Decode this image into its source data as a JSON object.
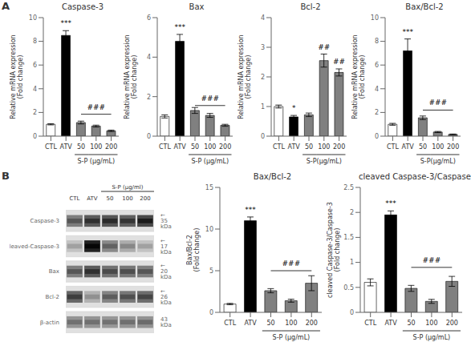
{
  "chart_data": [
    {
      "type": "bar",
      "panel_label": "A",
      "title": "Caspase-3",
      "ylabel": "Relative mRNA expression\n(Fold change)",
      "categories": [
        "CTL",
        "ATV",
        "50",
        "100",
        "200"
      ],
      "values": [
        1.0,
        8.5,
        1.15,
        0.85,
        0.45
      ],
      "errors": [
        0.05,
        0.4,
        0.12,
        0.08,
        0.06
      ],
      "colors": [
        "white",
        "black",
        "#808080",
        "#808080",
        "#808080"
      ],
      "ylim": [
        0,
        10
      ],
      "yticks": [
        0,
        2,
        4,
        6,
        8,
        10
      ],
      "grid": false,
      "x_bracket": {
        "label": "S-P (μg/mL)",
        "from": "50",
        "to": "200"
      },
      "annotations": [
        {
          "text": "***",
          "category": "ATV"
        },
        {
          "text": "###",
          "from": "50",
          "to": "200",
          "y": 1.85
        }
      ]
    },
    {
      "type": "bar",
      "title": "Bax",
      "ylabel": "Relative mRNA expression\n(Fold change)",
      "categories": [
        "CTL",
        "ATV",
        "50",
        "100",
        "200"
      ],
      "values": [
        1.0,
        4.8,
        1.3,
        1.05,
        0.55
      ],
      "errors": [
        0.08,
        0.35,
        0.15,
        0.1,
        0.05
      ],
      "colors": [
        "white",
        "black",
        "#808080",
        "#808080",
        "#808080"
      ],
      "ylim": [
        0,
        6
      ],
      "yticks": [
        0,
        2,
        4,
        6
      ],
      "grid": false,
      "x_bracket": {
        "label": "S-P (μg/mL)",
        "from": "50",
        "to": "200"
      },
      "annotations": [
        {
          "text": "***",
          "category": "ATV"
        },
        {
          "text": "###",
          "from": "50",
          "to": "200",
          "y": 1.55
        }
      ]
    },
    {
      "type": "bar",
      "title": "Bcl-2",
      "ylabel": "Relative mRNA expression\n(Fold change)",
      "categories": [
        "CTL",
        "ATV",
        "50",
        "100",
        "200"
      ],
      "values": [
        1.0,
        0.65,
        0.72,
        2.55,
        2.15
      ],
      "errors": [
        0.05,
        0.05,
        0.06,
        0.22,
        0.12
      ],
      "colors": [
        "white",
        "black",
        "#808080",
        "#808080",
        "#808080"
      ],
      "ylim": [
        0,
        4
      ],
      "yticks": [
        0,
        1,
        2,
        3,
        4
      ],
      "grid": false,
      "x_bracket": {
        "label": "S-P(μg/mL)",
        "from": "50",
        "to": "200"
      },
      "annotations": [
        {
          "text": "*",
          "category": "ATV"
        },
        {
          "text": "##",
          "category": "100"
        },
        {
          "text": "##",
          "category": "200"
        }
      ]
    },
    {
      "type": "bar",
      "title": "Bax/Bcl-2",
      "ylabel": "Relative mRNA expression\n(Fold change)",
      "categories": [
        "CTL",
        "ATV",
        "50",
        "100",
        "200"
      ],
      "values": [
        1.0,
        7.2,
        1.55,
        0.35,
        0.15
      ],
      "errors": [
        0.08,
        1.0,
        0.15,
        0.05,
        0.03
      ],
      "colors": [
        "white",
        "black",
        "#808080",
        "#808080",
        "#808080"
      ],
      "ylim": [
        0,
        10
      ],
      "yticks": [
        0,
        2,
        4,
        6,
        8,
        10
      ],
      "grid": false,
      "x_bracket": {
        "label": "S-P(μg/mL)",
        "from": "50",
        "to": "200"
      },
      "annotations": [
        {
          "text": "***",
          "category": "ATV"
        },
        {
          "text": "###",
          "from": "50",
          "to": "200",
          "y": 2.2
        }
      ]
    },
    {
      "type": "heatmap",
      "panel_label": "B",
      "x": [
        "CTL",
        "ATV",
        "50",
        "100",
        "200"
      ],
      "y": [
        "Caspase-3",
        "cleaved-Caspase-3",
        "Bax",
        "Bcl-2",
        "β-actin"
      ],
      "y2_labels": [
        "← 35 kDa",
        "← 17 kDa",
        "← 20 kDa",
        "← 26 kDa",
        "43 kDa"
      ],
      "x_bracket": {
        "label": "S-P (μg/ml)",
        "from": "50",
        "to": "200"
      },
      "cells": [
        [
          0.55,
          0.7,
          0.72,
          0.68,
          0.78
        ],
        [
          0.25,
          0.95,
          0.5,
          0.35,
          0.25
        ],
        [
          0.55,
          0.7,
          0.6,
          0.58,
          0.55
        ],
        [
          0.65,
          0.32,
          0.52,
          0.58,
          0.62
        ],
        [
          0.45,
          0.45,
          0.44,
          0.45,
          0.46
        ]
      ]
    },
    {
      "type": "bar",
      "title": "Bax/Bcl-2",
      "ylabel": "Bax/Bcl-2\n(Fold change)",
      "categories": [
        "CTL",
        "ATV",
        "50",
        "100",
        "200"
      ],
      "values": [
        1.0,
        11.0,
        2.6,
        1.4,
        3.5
      ],
      "errors": [
        0.08,
        0.45,
        0.25,
        0.18,
        0.9
      ],
      "colors": [
        "white",
        "black",
        "#808080",
        "#808080",
        "#808080"
      ],
      "ylim": [
        0,
        15
      ],
      "yticks": [
        0,
        5,
        10,
        15
      ],
      "grid": false,
      "x_bracket": {
        "label": "S-P (μg/mL)",
        "from": "50",
        "to": "200"
      },
      "annotations": [
        {
          "text": "***",
          "category": "ATV"
        },
        {
          "text": "###",
          "from": "50",
          "to": "200",
          "y": 5.0
        }
      ]
    },
    {
      "type": "bar",
      "title": "cleaved Caspase-3/Caspase-3",
      "ylabel": "cleaved Caspase-3/Caspase-3\n(Fold change)",
      "categories": [
        "CTL",
        "ATV",
        "50",
        "100",
        "200"
      ],
      "values": [
        0.6,
        1.95,
        0.48,
        0.22,
        0.62
      ],
      "errors": [
        0.07,
        0.08,
        0.06,
        0.04,
        0.1
      ],
      "colors": [
        "white",
        "black",
        "#808080",
        "#808080",
        "#808080"
      ],
      "ylim": [
        0,
        2.5
      ],
      "yticks": [
        0,
        0.5,
        1,
        1.5,
        2,
        2.5
      ],
      "grid": false,
      "x_bracket": {
        "label": "S-P (μg/mL)",
        "from": "50",
        "to": "200"
      },
      "annotations": [
        {
          "text": "***",
          "category": "ATV"
        },
        {
          "text": "###",
          "from": "50",
          "to": "200",
          "y": 0.9
        }
      ]
    }
  ]
}
